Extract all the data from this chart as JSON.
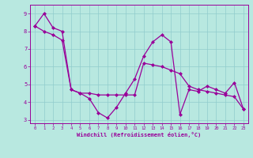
{
  "line1_x": [
    0,
    1,
    2,
    3,
    4,
    5,
    6,
    7,
    8,
    9,
    10,
    11,
    12,
    13,
    14,
    15,
    16,
    17,
    18,
    19,
    20,
    21,
    22,
    23
  ],
  "line1_y": [
    8.3,
    9.0,
    8.2,
    8.0,
    4.7,
    4.5,
    4.2,
    3.4,
    3.1,
    3.7,
    4.5,
    5.3,
    6.6,
    7.4,
    7.8,
    7.4,
    3.3,
    4.7,
    4.6,
    4.9,
    4.7,
    4.5,
    5.1,
    3.6
  ],
  "line2_x": [
    0,
    1,
    2,
    3,
    4,
    5,
    6,
    7,
    8,
    9,
    10,
    11,
    12,
    13,
    14,
    15,
    16,
    17,
    18,
    19,
    20,
    21,
    22,
    23
  ],
  "line2_y": [
    8.3,
    8.0,
    7.8,
    7.5,
    4.7,
    4.5,
    4.5,
    4.4,
    4.4,
    4.4,
    4.4,
    4.4,
    6.2,
    6.1,
    6.0,
    5.8,
    5.6,
    4.9,
    4.7,
    4.6,
    4.5,
    4.4,
    4.3,
    3.6
  ],
  "line_color": "#990099",
  "marker": "D",
  "marker_size": 2.0,
  "xlabel": "Windchill (Refroidissement éolien,°C)",
  "xlim": [
    -0.5,
    23.5
  ],
  "ylim": [
    2.8,
    9.5
  ],
  "yticks": [
    3,
    4,
    5,
    6,
    7,
    8,
    9
  ],
  "xticks": [
    0,
    1,
    2,
    3,
    4,
    5,
    6,
    7,
    8,
    9,
    10,
    11,
    12,
    13,
    14,
    15,
    16,
    17,
    18,
    19,
    20,
    21,
    22,
    23
  ],
  "bg_color": "#b8e8e0",
  "grid_color": "#90cccc",
  "xlabel_color": "#990099",
  "tick_color": "#990099",
  "linewidth": 0.9
}
